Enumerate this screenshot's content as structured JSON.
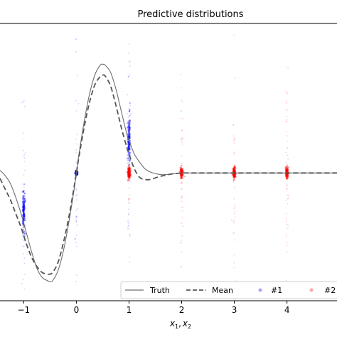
{
  "chart_data": {
    "type": "line",
    "title": "Predictive distributions",
    "xlabel": "x_1, x_2",
    "xlabel_parts": [
      "x",
      "1",
      ",",
      "x",
      "2"
    ],
    "ylabel": "",
    "xlim": [
      -1.45,
      4.95
    ],
    "ylim": [
      -2.35,
      2.75
    ],
    "x_ticks": [
      -1,
      0,
      1,
      2,
      3,
      4
    ],
    "x_tick_labels": [
      "−1",
      "0",
      "1",
      "2",
      "3",
      "4"
    ],
    "grid": false,
    "legend_position": "bottom-right",
    "series": [
      {
        "name": "Truth",
        "style": "solid",
        "color": "#6e6e6e",
        "x": [
          -1.45,
          -1.35,
          -1.25,
          -1.15,
          -1.05,
          -0.95,
          -0.85,
          -0.75,
          -0.65,
          -0.55,
          -0.5,
          -0.45,
          -0.35,
          -0.25,
          -0.15,
          -0.05,
          0.0,
          0.05,
          0.15,
          0.25,
          0.35,
          0.45,
          0.5,
          0.55,
          0.65,
          0.75,
          0.85,
          0.95,
          1.0,
          1.1,
          1.2,
          1.3,
          1.4,
          1.5,
          1.6,
          1.7,
          1.8,
          1.9,
          2.0,
          2.2,
          2.5,
          3.0,
          3.5,
          4.0,
          4.5,
          4.95
        ],
        "y": [
          0.05,
          -0.05,
          -0.2,
          -0.45,
          -0.75,
          -1.1,
          -1.45,
          -1.75,
          -1.92,
          -1.98,
          -2.0,
          -1.98,
          -1.8,
          -1.45,
          -0.95,
          -0.35,
          0.0,
          0.35,
          0.95,
          1.45,
          1.8,
          1.98,
          2.0,
          1.98,
          1.85,
          1.55,
          1.15,
          0.75,
          0.6,
          0.35,
          0.2,
          0.08,
          0.02,
          -0.01,
          -0.03,
          -0.03,
          -0.02,
          -0.01,
          0.0,
          0.0,
          0.0,
          0.0,
          0.0,
          0.0,
          0.0,
          0.0
        ]
      },
      {
        "name": "Mean",
        "style": "dashed",
        "color": "#555555",
        "x": [
          -1.45,
          -1.35,
          -1.25,
          -1.15,
          -1.05,
          -0.95,
          -0.85,
          -0.75,
          -0.65,
          -0.55,
          -0.5,
          -0.45,
          -0.35,
          -0.25,
          -0.15,
          -0.05,
          0.0,
          0.05,
          0.15,
          0.25,
          0.35,
          0.45,
          0.5,
          0.55,
          0.65,
          0.75,
          0.85,
          0.95,
          1.0,
          1.1,
          1.2,
          1.3,
          1.4,
          1.5,
          1.6,
          1.7,
          1.8,
          1.9,
          2.0,
          2.2,
          2.5,
          3.0,
          3.5,
          4.0,
          4.5,
          4.95
        ],
        "y": [
          -0.1,
          -0.3,
          -0.5,
          -0.75,
          -1.0,
          -1.3,
          -1.55,
          -1.72,
          -1.83,
          -1.86,
          -1.86,
          -1.83,
          -1.65,
          -1.3,
          -0.85,
          -0.3,
          0.0,
          0.3,
          0.85,
          1.3,
          1.62,
          1.77,
          1.8,
          1.78,
          1.6,
          1.25,
          0.85,
          0.5,
          0.35,
          0.08,
          -0.08,
          -0.12,
          -0.12,
          -0.09,
          -0.06,
          -0.04,
          -0.02,
          -0.01,
          0.0,
          0.0,
          0.0,
          0.0,
          0.0,
          0.0,
          0.0,
          0.0
        ]
      },
      {
        "name": "#1",
        "style": "scatter",
        "color": "#0000ff",
        "clusters": [
          {
            "x": -1,
            "center": -0.7,
            "spread": 0.2
          },
          {
            "x": 0,
            "center": 0.0,
            "spread": 0.02
          },
          {
            "x": 1,
            "center": 0.6,
            "spread": 0.2
          }
        ]
      },
      {
        "name": "#2",
        "style": "scatter",
        "color": "#ff0000",
        "clusters": [
          {
            "x": 1,
            "center": 0.0,
            "spread": 0.05
          },
          {
            "x": 2,
            "center": 0.0,
            "spread": 0.05
          },
          {
            "x": 3,
            "center": 0.0,
            "spread": 0.05
          },
          {
            "x": 4,
            "center": 0.0,
            "spread": 0.05
          }
        ]
      }
    ],
    "legend": [
      {
        "label": "Truth",
        "style": "solid"
      },
      {
        "label": "Mean",
        "style": "dashed"
      },
      {
        "label": "#1",
        "style": "dot",
        "color": "#0000ff"
      },
      {
        "label": "#2",
        "style": "dot",
        "color": "#ff0000"
      }
    ]
  }
}
